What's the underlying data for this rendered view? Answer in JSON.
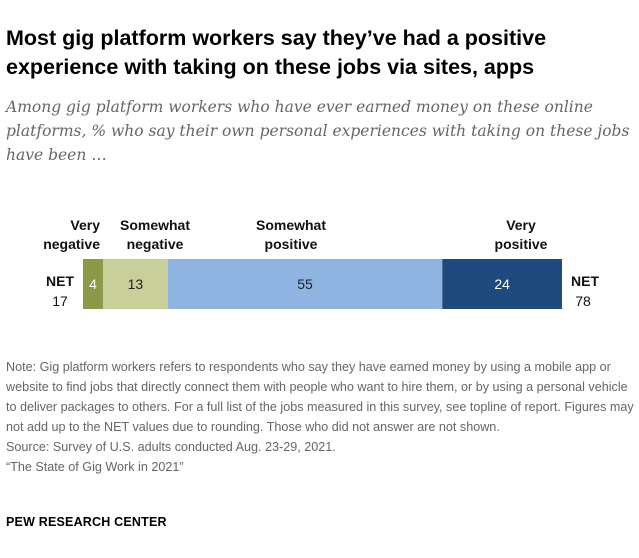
{
  "title": "Most gig platform workers say they’ve had a positive experience with taking on these jobs via sites, apps",
  "subtitle": "Among gig platform workers who have ever earned money on these online platforms, % who say their own personal experiences with taking on these jobs have been …",
  "chart_data": {
    "type": "bar",
    "orientation": "horizontal-stacked",
    "categories": [
      "Very negative",
      "Somewhat negative",
      "Somewhat positive",
      "Very positive"
    ],
    "category_labels": [
      [
        "Very",
        "negative"
      ],
      [
        "Somewhat",
        "negative"
      ],
      [
        "Somewhat",
        "positive"
      ],
      [
        "Very",
        "positive"
      ]
    ],
    "values": [
      4,
      13,
      55,
      24
    ],
    "colors": [
      "#8a9a46",
      "#c8cf98",
      "#8fb4e2",
      "#1e4a7f"
    ],
    "value_text_colors": [
      "#ffffff",
      "#222222",
      "#222222",
      "#ffffff"
    ],
    "net": {
      "negative": {
        "label": "NET",
        "value": 17
      },
      "positive": {
        "label": "NET",
        "value": 78
      }
    }
  },
  "notes": {
    "note": "Note: Gig platform workers refers to respondents who say they have earned money by using a mobile app or website to find jobs that directly connect them with people who want to hire them, or by using a personal vehicle to deliver packages to others. For a full list of the jobs measured in this survey, see topline of report. Figures may not add up to the NET values due to rounding. Those who did not answer are not shown.",
    "source": "Source: Survey of U.S. adults conducted Aug. 23-29, 2021.",
    "report": "“The State of Gig Work in 2021”"
  },
  "brand": "PEW RESEARCH CENTER"
}
